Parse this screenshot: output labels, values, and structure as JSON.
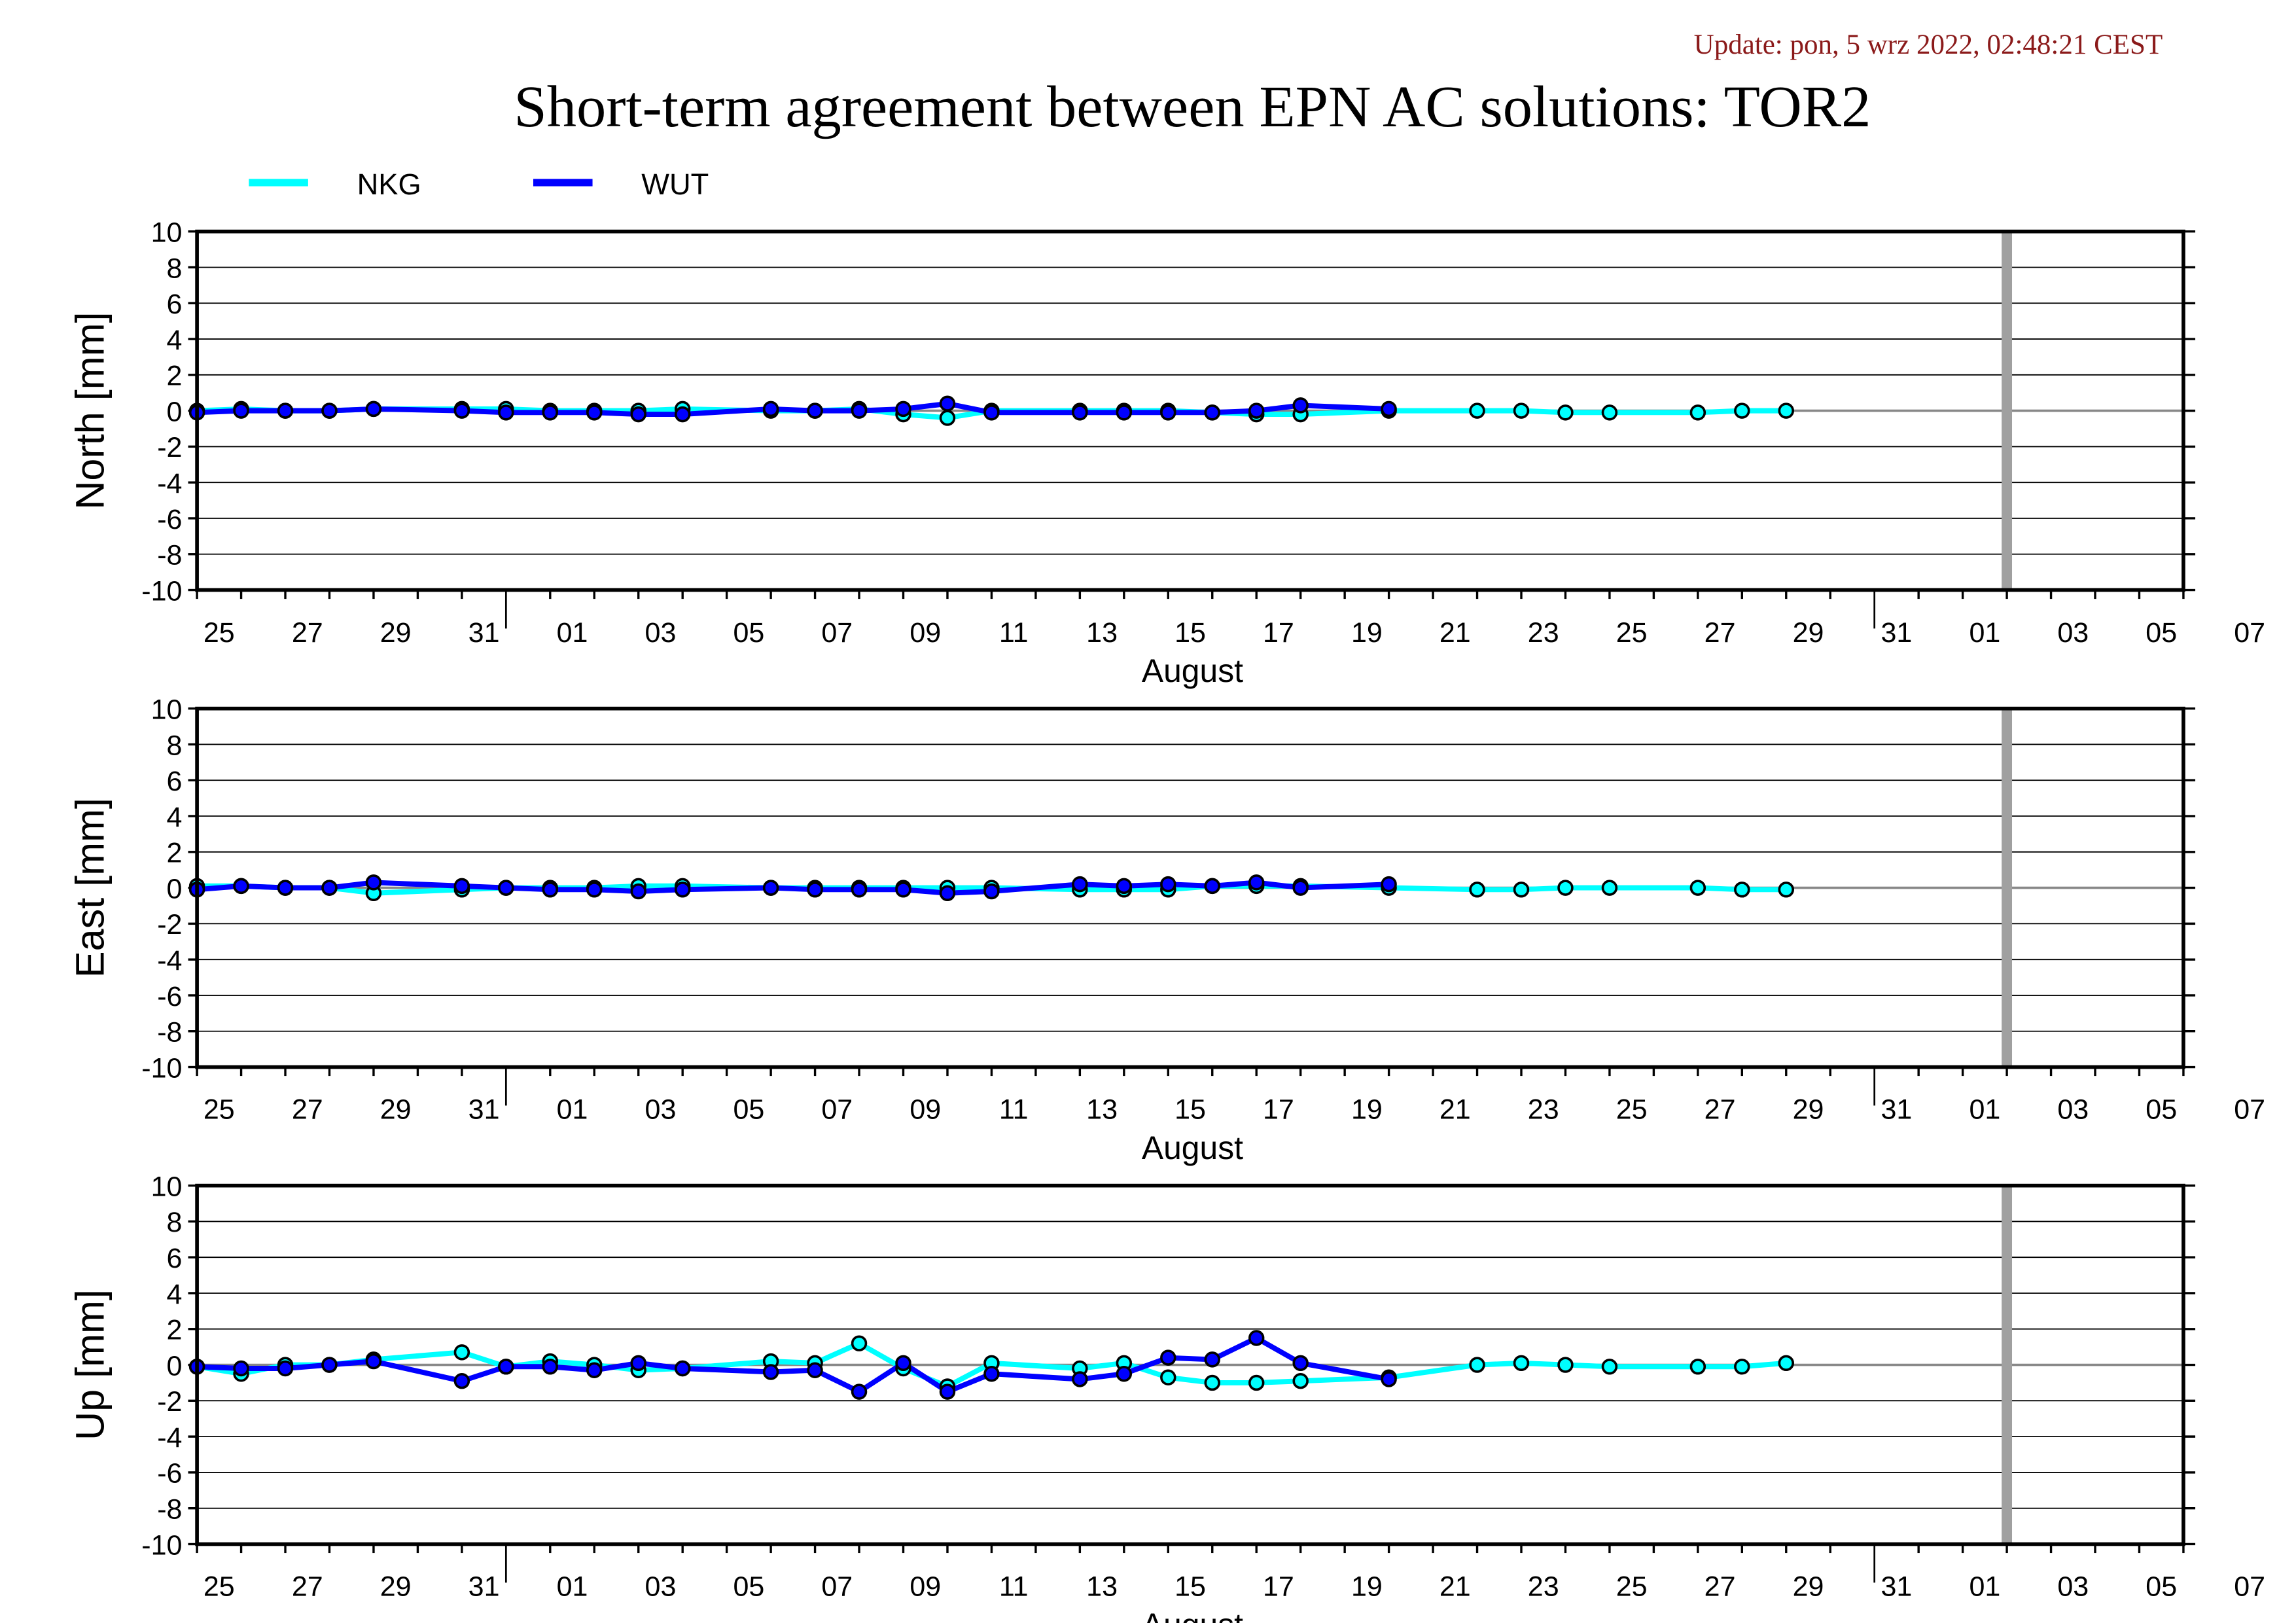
{
  "update_text": "Update: pon, 5 wrz 2022, 02:48:21 CEST",
  "title": "Short-term agreement between EPN AC solutions: TOR2",
  "colors": {
    "NKG": "#00ffff",
    "WUT": "#0000ff",
    "marker_edge": "#000000",
    "update_text": "#8b1a1a",
    "zero_line": "#888888",
    "marker_bar": "#a0a0a0"
  },
  "legend": [
    {
      "name": "NKG",
      "color": "#00ffff"
    },
    {
      "name": "WUT",
      "color": "#0000ff"
    }
  ],
  "chart_data": [
    {
      "type": "line",
      "ylabel": "North [mm]",
      "xlabel": "August",
      "ylim": [
        -10,
        10
      ],
      "yticks": [
        10,
        8,
        6,
        4,
        2,
        0,
        -2,
        -4,
        -6,
        -8,
        -10
      ],
      "xlim": [
        "2022-07-25",
        "2022-09-08"
      ],
      "xtick_labels": [
        "25",
        "27",
        "29",
        "31",
        "01",
        "03",
        "05",
        "07",
        "09",
        "11",
        "13",
        "15",
        "17",
        "19",
        "21",
        "23",
        "25",
        "27",
        "29",
        "31",
        "01",
        "03",
        "05",
        "07"
      ],
      "grid": true,
      "vertical_marker": "2022-09-04",
      "series": [
        {
          "name": "NKG",
          "x": [
            "2022-07-25",
            "2022-07-26",
            "2022-07-27",
            "2022-07-28",
            "2022-07-29",
            "2022-07-31",
            "2022-08-01",
            "2022-08-02",
            "2022-08-03",
            "2022-08-04",
            "2022-08-05",
            "2022-08-07",
            "2022-08-08",
            "2022-08-09",
            "2022-08-10",
            "2022-08-11",
            "2022-08-12",
            "2022-08-14",
            "2022-08-15",
            "2022-08-16",
            "2022-08-17",
            "2022-08-18",
            "2022-08-19",
            "2022-08-21",
            "2022-08-23",
            "2022-08-24",
            "2022-08-25",
            "2022-08-26",
            "2022-08-28",
            "2022-08-29",
            "2022-08-30"
          ],
          "y": [
            0.0,
            0.1,
            0.0,
            0.0,
            0.1,
            0.1,
            0.1,
            0.0,
            0.0,
            0.0,
            0.1,
            0.0,
            0.0,
            0.1,
            -0.2,
            -0.4,
            0.0,
            0.0,
            0.0,
            0.0,
            -0.1,
            -0.2,
            -0.2,
            0.0,
            0.0,
            0.0,
            -0.1,
            -0.1,
            -0.1,
            0.0,
            0.0
          ]
        },
        {
          "name": "WUT",
          "x": [
            "2022-07-25",
            "2022-07-26",
            "2022-07-27",
            "2022-07-28",
            "2022-07-29",
            "2022-07-31",
            "2022-08-01",
            "2022-08-02",
            "2022-08-03",
            "2022-08-04",
            "2022-08-05",
            "2022-08-07",
            "2022-08-08",
            "2022-08-09",
            "2022-08-10",
            "2022-08-11",
            "2022-08-12",
            "2022-08-14",
            "2022-08-15",
            "2022-08-16",
            "2022-08-17",
            "2022-08-18",
            "2022-08-19",
            "2022-08-21"
          ],
          "y": [
            -0.1,
            0.0,
            0.0,
            0.0,
            0.1,
            0.0,
            -0.1,
            -0.1,
            -0.1,
            -0.2,
            -0.2,
            0.1,
            0.0,
            0.0,
            0.1,
            0.4,
            -0.1,
            -0.1,
            -0.1,
            -0.1,
            -0.1,
            0.0,
            0.3,
            0.1
          ]
        }
      ]
    },
    {
      "type": "line",
      "ylabel": "East [mm]",
      "xlabel": "August",
      "ylim": [
        -10,
        10
      ],
      "yticks": [
        10,
        8,
        6,
        4,
        2,
        0,
        -2,
        -4,
        -6,
        -8,
        -10
      ],
      "xlim": [
        "2022-07-25",
        "2022-09-08"
      ],
      "xtick_labels": [
        "25",
        "27",
        "29",
        "31",
        "01",
        "03",
        "05",
        "07",
        "09",
        "11",
        "13",
        "15",
        "17",
        "19",
        "21",
        "23",
        "25",
        "27",
        "29",
        "31",
        "01",
        "03",
        "05",
        "07"
      ],
      "grid": true,
      "vertical_marker": "2022-09-04",
      "series": [
        {
          "name": "NKG",
          "x": [
            "2022-07-25",
            "2022-07-26",
            "2022-07-27",
            "2022-07-28",
            "2022-07-29",
            "2022-07-31",
            "2022-08-01",
            "2022-08-02",
            "2022-08-03",
            "2022-08-04",
            "2022-08-05",
            "2022-08-07",
            "2022-08-08",
            "2022-08-09",
            "2022-08-10",
            "2022-08-11",
            "2022-08-12",
            "2022-08-14",
            "2022-08-15",
            "2022-08-16",
            "2022-08-17",
            "2022-08-18",
            "2022-08-19",
            "2022-08-21",
            "2022-08-23",
            "2022-08-24",
            "2022-08-25",
            "2022-08-26",
            "2022-08-28",
            "2022-08-29",
            "2022-08-30"
          ],
          "y": [
            0.1,
            0.1,
            0.0,
            0.0,
            -0.3,
            -0.1,
            0.0,
            0.0,
            0.0,
            0.1,
            0.1,
            0.0,
            0.0,
            0.0,
            0.0,
            0.0,
            0.0,
            -0.1,
            -0.1,
            -0.1,
            0.1,
            0.1,
            0.1,
            0.0,
            -0.1,
            -0.1,
            0.0,
            0.0,
            0.0,
            -0.1,
            -0.1
          ]
        },
        {
          "name": "WUT",
          "x": [
            "2022-07-25",
            "2022-07-26",
            "2022-07-27",
            "2022-07-28",
            "2022-07-29",
            "2022-07-31",
            "2022-08-01",
            "2022-08-02",
            "2022-08-03",
            "2022-08-04",
            "2022-08-05",
            "2022-08-07",
            "2022-08-08",
            "2022-08-09",
            "2022-08-10",
            "2022-08-11",
            "2022-08-12",
            "2022-08-14",
            "2022-08-15",
            "2022-08-16",
            "2022-08-17",
            "2022-08-18",
            "2022-08-19",
            "2022-08-21"
          ],
          "y": [
            -0.1,
            0.1,
            0.0,
            0.0,
            0.3,
            0.1,
            0.0,
            -0.1,
            -0.1,
            -0.2,
            -0.1,
            0.0,
            -0.1,
            -0.1,
            -0.1,
            -0.3,
            -0.2,
            0.2,
            0.1,
            0.2,
            0.1,
            0.3,
            0.0,
            0.2
          ]
        }
      ]
    },
    {
      "type": "line",
      "ylabel": "Up [mm]",
      "xlabel": "August",
      "ylim": [
        -10,
        10
      ],
      "yticks": [
        10,
        8,
        6,
        4,
        2,
        0,
        -2,
        -4,
        -6,
        -8,
        -10
      ],
      "xlim": [
        "2022-07-25",
        "2022-09-08"
      ],
      "xtick_labels": [
        "25",
        "27",
        "29",
        "31",
        "01",
        "03",
        "05",
        "07",
        "09",
        "11",
        "13",
        "15",
        "17",
        "19",
        "21",
        "23",
        "25",
        "27",
        "29",
        "31",
        "01",
        "03",
        "05",
        "07"
      ],
      "grid": true,
      "vertical_marker": "2022-09-04",
      "series": [
        {
          "name": "NKG",
          "x": [
            "2022-07-25",
            "2022-07-26",
            "2022-07-27",
            "2022-07-28",
            "2022-07-29",
            "2022-07-31",
            "2022-08-01",
            "2022-08-02",
            "2022-08-03",
            "2022-08-04",
            "2022-08-05",
            "2022-08-07",
            "2022-08-08",
            "2022-08-09",
            "2022-08-10",
            "2022-08-11",
            "2022-08-12",
            "2022-08-14",
            "2022-08-15",
            "2022-08-16",
            "2022-08-17",
            "2022-08-18",
            "2022-08-19",
            "2022-08-21",
            "2022-08-23",
            "2022-08-24",
            "2022-08-25",
            "2022-08-26",
            "2022-08-28",
            "2022-08-29",
            "2022-08-30"
          ],
          "y": [
            -0.1,
            -0.5,
            0.0,
            0.0,
            0.3,
            0.7,
            -0.1,
            0.2,
            0.0,
            -0.3,
            -0.2,
            0.2,
            0.1,
            1.2,
            -0.2,
            -1.2,
            0.1,
            -0.2,
            0.1,
            -0.7,
            -1.0,
            -1.0,
            -0.9,
            -0.7,
            0.0,
            0.1,
            0.0,
            -0.1,
            -0.1,
            -0.1,
            0.1
          ]
        },
        {
          "name": "WUT",
          "x": [
            "2022-07-25",
            "2022-07-26",
            "2022-07-27",
            "2022-07-28",
            "2022-07-29",
            "2022-07-31",
            "2022-08-01",
            "2022-08-02",
            "2022-08-03",
            "2022-08-04",
            "2022-08-05",
            "2022-08-07",
            "2022-08-08",
            "2022-08-09",
            "2022-08-10",
            "2022-08-11",
            "2022-08-12",
            "2022-08-14",
            "2022-08-15",
            "2022-08-16",
            "2022-08-17",
            "2022-08-18",
            "2022-08-19",
            "2022-08-21"
          ],
          "y": [
            -0.1,
            -0.2,
            -0.2,
            0.0,
            0.2,
            -0.9,
            -0.1,
            -0.1,
            -0.3,
            0.1,
            -0.2,
            -0.4,
            -0.3,
            -1.5,
            0.1,
            -1.5,
            -0.5,
            -0.8,
            -0.5,
            0.4,
            0.3,
            1.5,
            0.1,
            -0.8
          ]
        }
      ]
    }
  ]
}
